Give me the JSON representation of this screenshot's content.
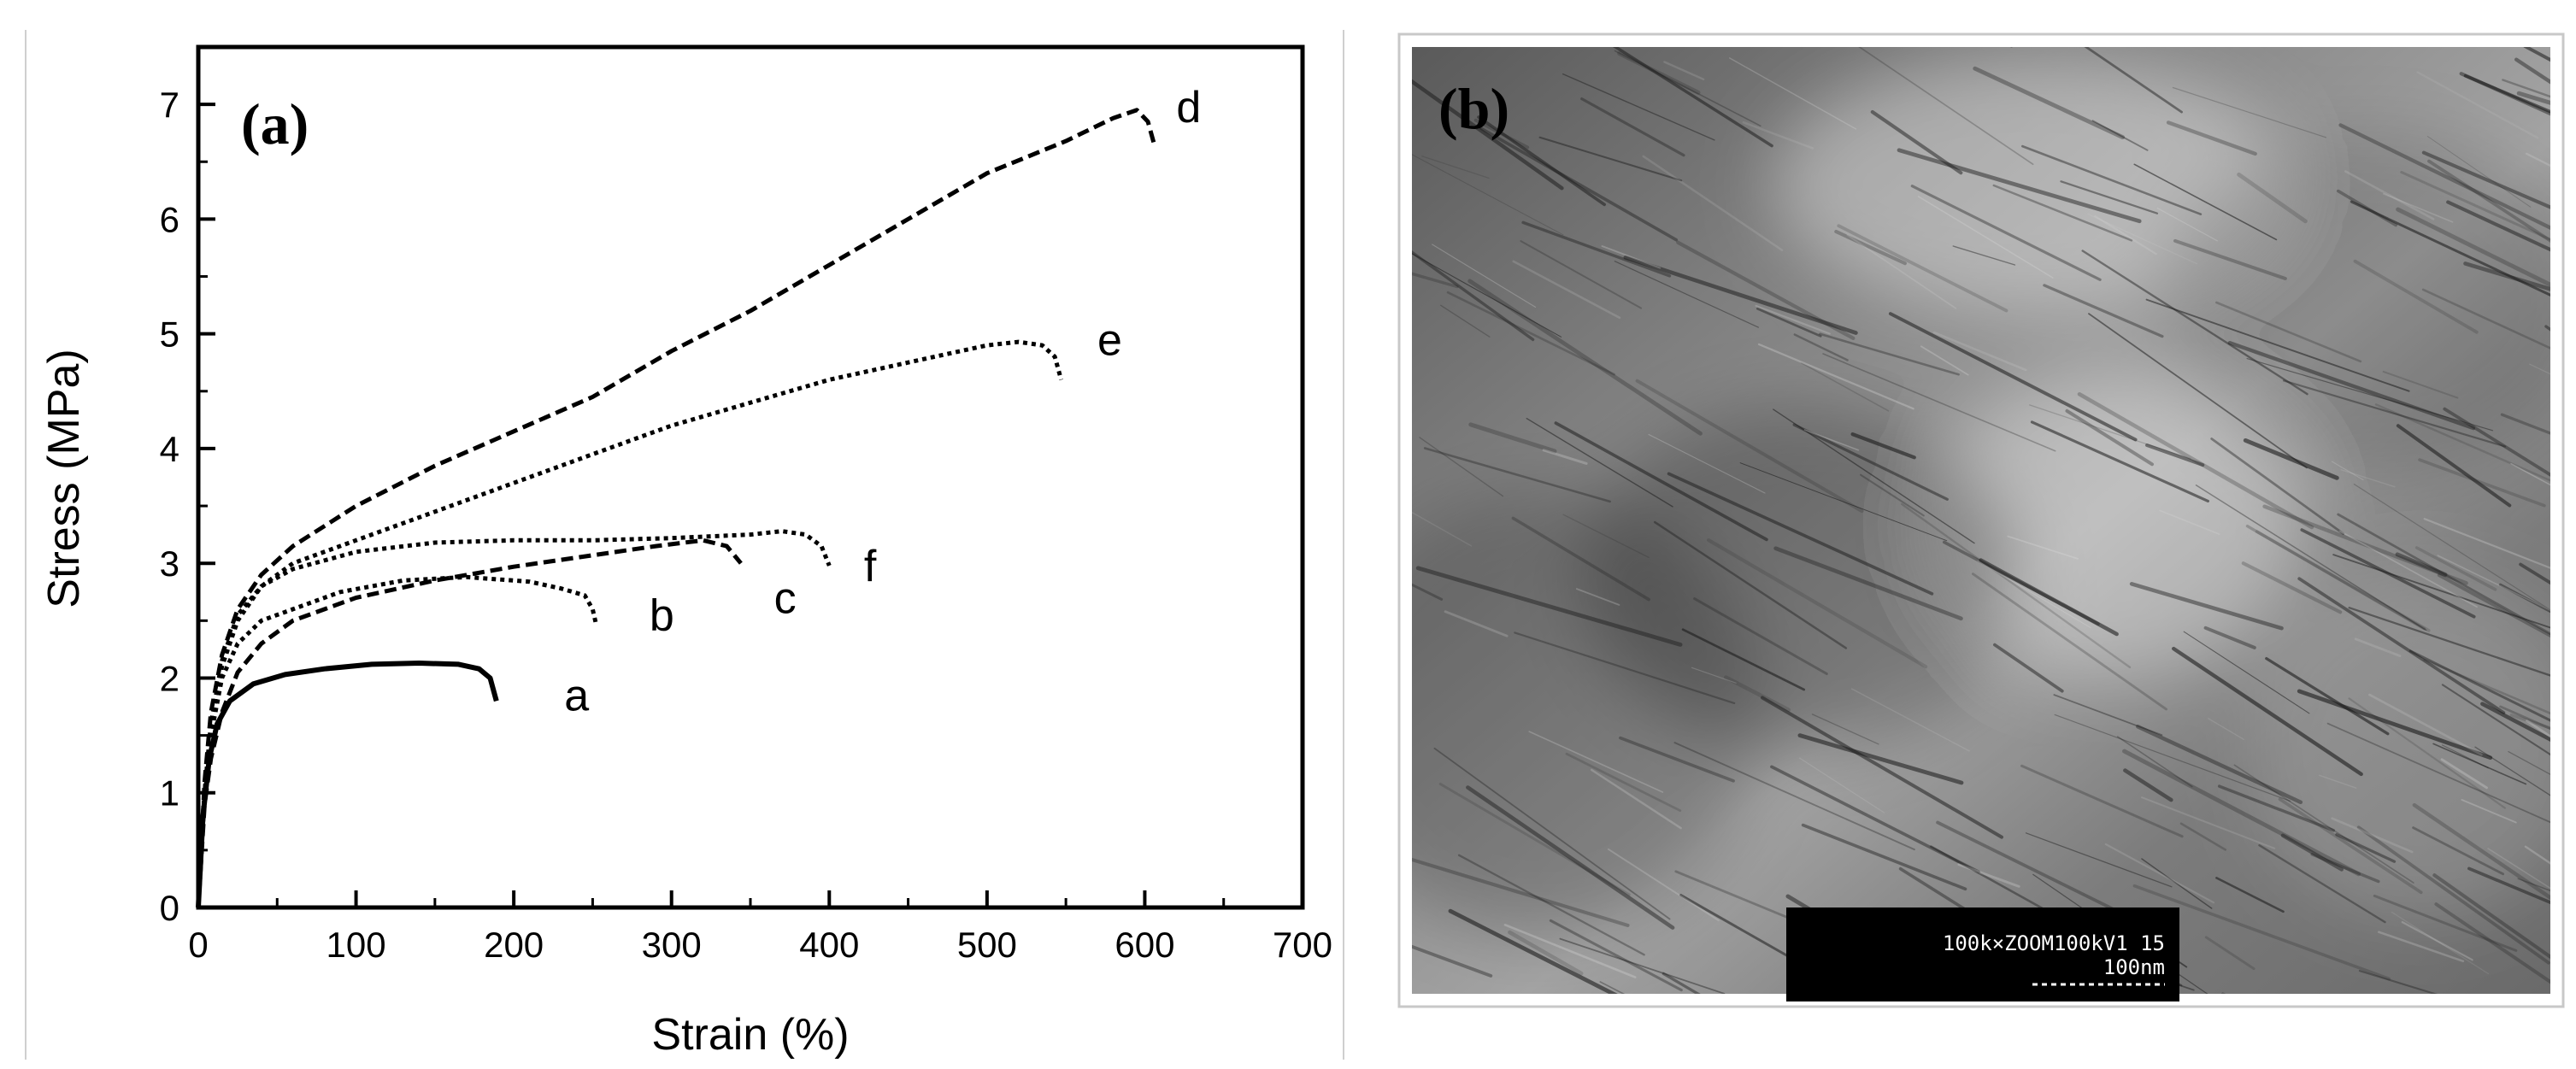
{
  "panels": {
    "a": {
      "label": "(a)"
    },
    "b": {
      "label": "(b)",
      "scale_box_line1": "100k×ZOOM100kV1 15",
      "scale_box_line2": "100nm"
    }
  },
  "chart_data": {
    "type": "line",
    "title": "",
    "xlabel": "Strain (%)",
    "ylabel": "Stress (MPa)",
    "xlim": [
      0,
      700
    ],
    "ylim": [
      0,
      7.5
    ],
    "x_ticks": [
      0,
      100,
      200,
      300,
      400,
      500,
      600,
      700
    ],
    "y_ticks": [
      0,
      1,
      2,
      3,
      4,
      5,
      6,
      7
    ],
    "grid": false,
    "legend": "none",
    "series": [
      {
        "name": "a",
        "dash": "solid",
        "points": [
          [
            0,
            0
          ],
          [
            3,
            0.8
          ],
          [
            7,
            1.3
          ],
          [
            12,
            1.6
          ],
          [
            20,
            1.8
          ],
          [
            35,
            1.95
          ],
          [
            55,
            2.03
          ],
          [
            80,
            2.08
          ],
          [
            110,
            2.12
          ],
          [
            140,
            2.13
          ],
          [
            165,
            2.12
          ],
          [
            178,
            2.08
          ],
          [
            185,
            2.0
          ],
          [
            189,
            1.8
          ]
        ]
      },
      {
        "name": "b",
        "dash": "dotted",
        "points": [
          [
            0,
            0
          ],
          [
            4,
            1.0
          ],
          [
            8,
            1.5
          ],
          [
            15,
            2.0
          ],
          [
            25,
            2.3
          ],
          [
            40,
            2.5
          ],
          [
            60,
            2.6
          ],
          [
            90,
            2.75
          ],
          [
            130,
            2.85
          ],
          [
            170,
            2.88
          ],
          [
            210,
            2.84
          ],
          [
            230,
            2.78
          ],
          [
            245,
            2.72
          ],
          [
            250,
            2.6
          ],
          [
            252,
            2.48
          ]
        ]
      },
      {
        "name": "c",
        "dash": "dashed",
        "points": [
          [
            0,
            0
          ],
          [
            4,
            0.9
          ],
          [
            8,
            1.3
          ],
          [
            15,
            1.7
          ],
          [
            25,
            2.05
          ],
          [
            40,
            2.3
          ],
          [
            60,
            2.5
          ],
          [
            100,
            2.7
          ],
          [
            150,
            2.85
          ],
          [
            200,
            2.97
          ],
          [
            250,
            3.07
          ],
          [
            290,
            3.15
          ],
          [
            320,
            3.2
          ],
          [
            335,
            3.15
          ],
          [
            344,
            3.0
          ]
        ]
      },
      {
        "name": "d",
        "dash": "dashed",
        "points": [
          [
            0,
            0
          ],
          [
            4,
            1.1
          ],
          [
            8,
            1.7
          ],
          [
            15,
            2.2
          ],
          [
            25,
            2.6
          ],
          [
            40,
            2.9
          ],
          [
            60,
            3.15
          ],
          [
            100,
            3.5
          ],
          [
            150,
            3.85
          ],
          [
            200,
            4.15
          ],
          [
            250,
            4.45
          ],
          [
            300,
            4.85
          ],
          [
            350,
            5.2
          ],
          [
            400,
            5.6
          ],
          [
            450,
            6.0
          ],
          [
            500,
            6.4
          ],
          [
            550,
            6.68
          ],
          [
            580,
            6.88
          ],
          [
            595,
            6.95
          ],
          [
            602,
            6.85
          ],
          [
            606,
            6.65
          ]
        ]
      },
      {
        "name": "e",
        "dash": "dotted",
        "points": [
          [
            0,
            0
          ],
          [
            4,
            1.0
          ],
          [
            8,
            1.6
          ],
          [
            15,
            2.1
          ],
          [
            25,
            2.5
          ],
          [
            40,
            2.8
          ],
          [
            60,
            3.0
          ],
          [
            100,
            3.2
          ],
          [
            150,
            3.45
          ],
          [
            200,
            3.7
          ],
          [
            250,
            3.95
          ],
          [
            300,
            4.2
          ],
          [
            350,
            4.4
          ],
          [
            400,
            4.6
          ],
          [
            450,
            4.75
          ],
          [
            500,
            4.9
          ],
          [
            520,
            4.93
          ],
          [
            535,
            4.9
          ],
          [
            543,
            4.8
          ],
          [
            547,
            4.6
          ]
        ]
      },
      {
        "name": "f",
        "dash": "dotted",
        "points": [
          [
            0,
            0
          ],
          [
            4,
            1.0
          ],
          [
            8,
            1.6
          ],
          [
            15,
            2.15
          ],
          [
            25,
            2.55
          ],
          [
            40,
            2.8
          ],
          [
            60,
            2.95
          ],
          [
            100,
            3.1
          ],
          [
            150,
            3.18
          ],
          [
            200,
            3.2
          ],
          [
            250,
            3.2
          ],
          [
            300,
            3.22
          ],
          [
            350,
            3.25
          ],
          [
            370,
            3.28
          ],
          [
            385,
            3.25
          ],
          [
            395,
            3.15
          ],
          [
            400,
            2.98
          ]
        ]
      }
    ],
    "series_labels": [
      "a",
      "b",
      "c",
      "d",
      "e",
      "f"
    ]
  }
}
